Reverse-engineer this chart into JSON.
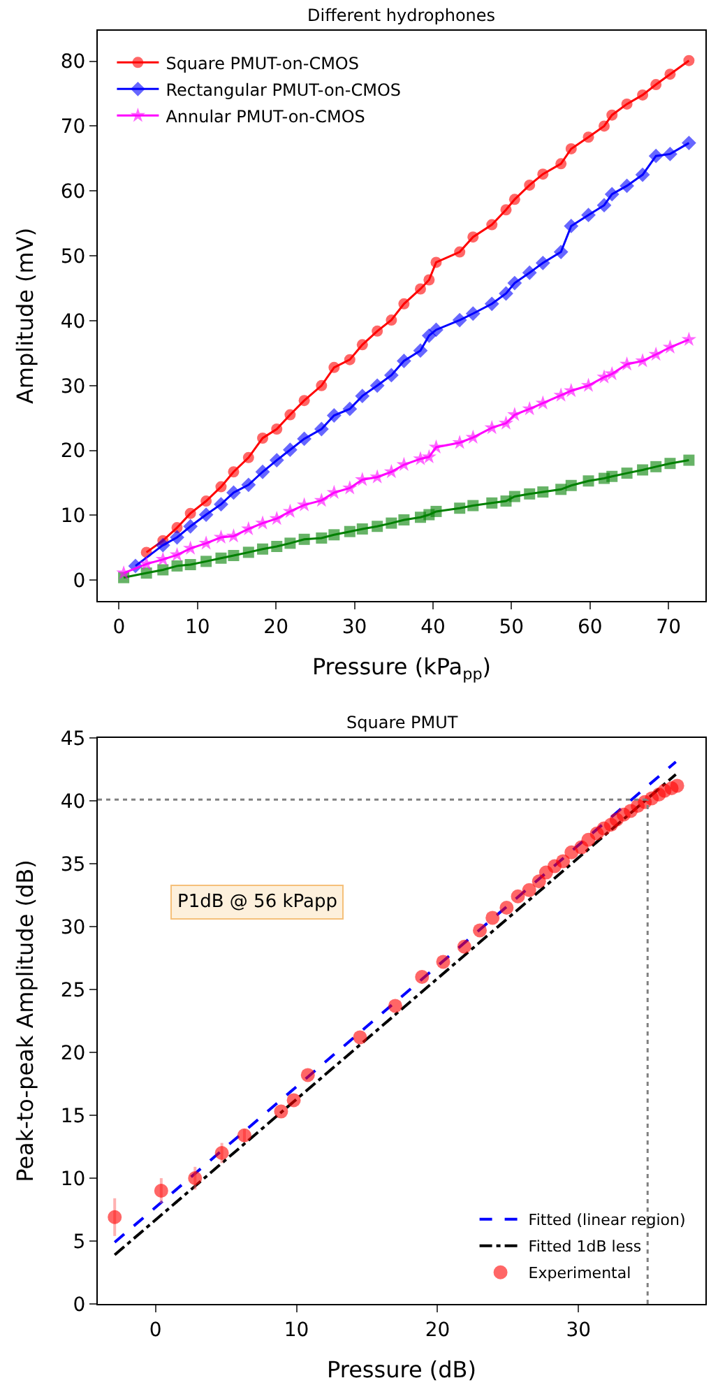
{
  "chart_data": [
    {
      "type": "line",
      "title": "Different hydrophones",
      "xlabel": "Pressure (kPa$_{pp}$)",
      "ylabel": "Amplitude (mV)",
      "xlim": [
        -2.7,
        74.7
      ],
      "ylim": [
        -3.2,
        84.7
      ],
      "xticks": [
        0,
        10,
        20,
        30,
        40,
        50,
        60,
        70
      ],
      "yticks": [
        0,
        10,
        20,
        30,
        40,
        50,
        60,
        70,
        80
      ],
      "legend": "top left",
      "x": [
        0.6,
        3.5,
        5.6,
        7.4,
        9.1,
        11.1,
        13.0,
        14.6,
        16.5,
        18.3,
        20.1,
        21.8,
        23.6,
        25.8,
        27.4,
        29.4,
        31.0,
        32.9,
        34.7,
        36.3,
        38.4,
        39.5,
        40.4,
        43.4,
        45.1,
        47.5,
        49.3,
        50.4,
        52.3,
        54.0,
        56.3,
        57.6,
        59.8,
        61.8,
        62.8,
        64.7,
        66.7,
        68.4,
        70.2,
        72.6
      ],
      "series": [
        {
          "color": "#008000",
          "marker": "square",
          "values": [
            0.4,
            1.1,
            1.6,
            2.2,
            2.4,
            2.9,
            3.4,
            3.8,
            4.3,
            4.8,
            5.2,
            5.7,
            6.3,
            6.5,
            7.0,
            7.5,
            7.9,
            8.3,
            8.8,
            9.3,
            9.7,
            10.1,
            10.6,
            11.1,
            11.5,
            11.9,
            12.2,
            12.9,
            13.3,
            13.6,
            14.0,
            14.6,
            15.3,
            15.7,
            16.0,
            16.5,
            17.0,
            17.5,
            18.0,
            18.5
          ]
        },
        {
          "name": "Square PMUT-on-CMOS",
          "color": "#ff0000",
          "marker": "circle",
          "x": [
            3.5,
            5.6,
            7.4,
            9.1,
            11.1,
            13.0,
            14.6,
            16.5,
            18.3,
            20.1,
            21.8,
            23.6,
            25.8,
            27.4,
            29.4,
            31.0,
            32.9,
            34.7,
            36.3,
            38.4,
            39.5,
            40.4,
            43.4,
            45.1,
            47.5,
            49.3,
            50.4,
            52.3,
            54.0,
            56.3,
            57.6,
            59.8,
            61.8,
            62.8,
            64.7,
            66.7,
            68.4,
            70.2,
            72.6
          ],
          "values": [
            4.3,
            6.1,
            8.1,
            10.3,
            12.2,
            14.4,
            16.7,
            18.9,
            21.9,
            23.3,
            25.5,
            27.7,
            30.0,
            32.8,
            34.0,
            36.3,
            38.4,
            40.1,
            42.6,
            44.9,
            46.3,
            49.0,
            50.6,
            52.9,
            54.8,
            57.1,
            58.7,
            60.9,
            62.6,
            64.2,
            66.5,
            68.3,
            70.0,
            71.7,
            73.4,
            74.8,
            76.4,
            78.0,
            80.1
          ]
        },
        {
          "name": "Rectangular PMUT-on-CMOS",
          "color": "#0000ff",
          "marker": "diamond",
          "x": [
            2.1,
            5.6,
            7.4,
            9.1,
            11.1,
            13.0,
            14.6,
            16.5,
            18.3,
            20.1,
            21.8,
            23.6,
            25.8,
            27.4,
            29.4,
            31.0,
            32.9,
            34.7,
            36.3,
            38.4,
            39.5,
            40.4,
            43.4,
            45.1,
            47.5,
            49.3,
            50.4,
            52.3,
            54.0,
            56.3,
            57.6,
            59.8,
            61.8,
            62.8,
            64.7,
            66.7,
            68.4,
            70.2,
            72.6
          ],
          "values": [
            2.2,
            5.4,
            6.6,
            8.3,
            10.1,
            11.7,
            13.5,
            14.7,
            16.7,
            18.5,
            20.1,
            21.8,
            23.3,
            25.4,
            26.4,
            28.4,
            30.0,
            31.6,
            33.8,
            35.4,
            37.7,
            38.6,
            40.1,
            41.1,
            42.6,
            44.2,
            45.8,
            47.4,
            48.9,
            50.6,
            54.6,
            56.3,
            57.8,
            59.5,
            60.8,
            62.5,
            65.4,
            65.7,
            67.4
          ]
        },
        {
          "name": "Annular PMUT-on-CMOS",
          "color": "#ff00ff",
          "marker": "star",
          "values": [
            1.1,
            2.5,
            3.2,
            3.9,
            4.9,
            5.7,
            6.6,
            6.8,
            7.9,
            8.8,
            9.5,
            10.6,
            11.6,
            12.3,
            13.5,
            14.2,
            15.5,
            15.9,
            16.7,
            17.8,
            18.7,
            19.0,
            20.5,
            21.2,
            22.0,
            23.5,
            24.2,
            25.5,
            26.4,
            27.3,
            28.5,
            29.2,
            30.0,
            31.3,
            31.8,
            33.3,
            33.8,
            34.8,
            35.9,
            37.1
          ]
        }
      ]
    },
    {
      "type": "scatter",
      "title": "Square PMUT",
      "xlabel": "Pressure (dB)",
      "ylabel": "Peak-to-peak Amplitude (dB)",
      "xlim": [
        -4.1,
        39
      ],
      "ylim": [
        0,
        45
      ],
      "xticks": [
        0,
        10,
        20,
        30
      ],
      "yticks": [
        0,
        5,
        10,
        15,
        20,
        25,
        30,
        35,
        40,
        45
      ],
      "legend": "bottom right",
      "annotations": [
        "P1dB @ 56 kPapp"
      ],
      "ref_lines": [
        {
          "axis": "y",
          "value": 40.1,
          "color": "#808080",
          "line_style": "dotted"
        },
        {
          "axis": "x",
          "value": 34.9,
          "color": "#808080",
          "line_style": "dotted"
        }
      ],
      "series": [
        {
          "name": "Fitted (linear region)",
          "type": "line",
          "color": "#0000ff",
          "line_style": "dashed",
          "marker": "none",
          "x": [
            -2.9,
            36.9
          ],
          "values": [
            4.9,
            43.1
          ]
        },
        {
          "name": "Fitted 1dB less",
          "type": "line",
          "color": "#000000",
          "line_style": "dashdot",
          "marker": "none",
          "x": [
            -2.9,
            36.9
          ],
          "values": [
            3.9,
            42.1
          ]
        },
        {
          "name": "Experimental",
          "type": "scatter",
          "color": "#ff0000",
          "marker": "circle",
          "x": [
            -2.9,
            0.4,
            2.8,
            4.7,
            6.3,
            8.9,
            9.8,
            10.8,
            14.5,
            17.0,
            18.9,
            20.4,
            21.9,
            23.0,
            23.9,
            24.9,
            25.7,
            26.5,
            27.2,
            27.7,
            28.3,
            28.9,
            29.5,
            30.2,
            30.7,
            31.3,
            31.8,
            32.3,
            32.7,
            33.2,
            33.7,
            34.2,
            34.7,
            35.2,
            35.7,
            36.1,
            36.6,
            37.0
          ],
          "values": [
            6.9,
            9.0,
            10.0,
            12.0,
            13.4,
            15.3,
            16.2,
            18.2,
            21.2,
            23.7,
            26.0,
            27.2,
            28.4,
            29.7,
            30.7,
            31.5,
            32.4,
            32.9,
            33.6,
            34.3,
            34.8,
            35.2,
            35.9,
            36.3,
            36.9,
            37.4,
            37.8,
            38.1,
            38.5,
            38.9,
            39.2,
            39.6,
            39.9,
            40.2,
            40.5,
            40.8,
            41.0,
            41.2
          ],
          "errors": [
            1.5,
            1.0,
            0.9,
            0.8,
            0.5,
            null,
            null,
            null,
            null,
            null,
            null,
            null,
            null,
            null,
            null,
            null,
            null,
            null,
            null,
            null,
            null,
            null,
            null,
            null,
            null,
            null,
            null,
            null,
            null,
            null,
            null,
            null,
            null,
            null,
            null,
            null,
            null,
            null
          ]
        }
      ]
    }
  ]
}
